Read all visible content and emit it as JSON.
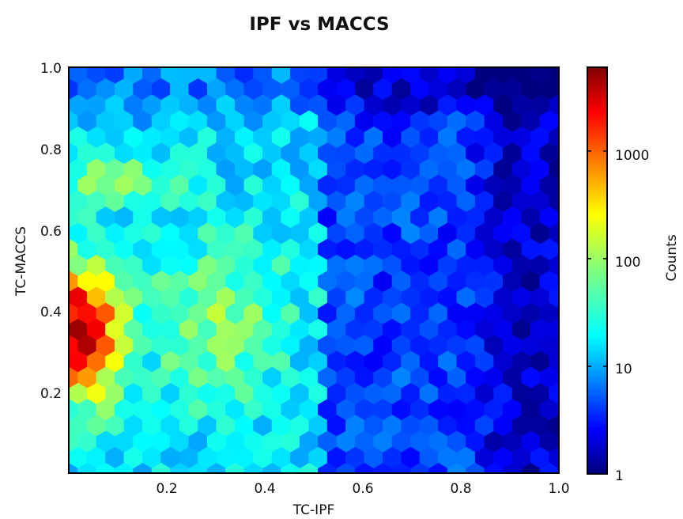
{
  "chart_data": {
    "type": "heatmap",
    "subtype": "hexbin",
    "title": "IPF vs MACCS",
    "xlabel": "TC-IPF",
    "ylabel": "TC-MACCS",
    "xlim": [
      0.0,
      1.0
    ],
    "ylim": [
      0.0,
      1.0
    ],
    "xticks": [
      "0.2",
      "0.4",
      "0.6",
      "0.8",
      "1.0"
    ],
    "yticks": [
      "0.2",
      "0.4",
      "0.6",
      "0.8",
      "1.0"
    ],
    "x_tick_values": [
      0.2,
      0.4,
      0.6,
      0.8,
      1.0
    ],
    "y_tick_values": [
      0.2,
      0.4,
      0.6,
      0.8,
      1.0
    ],
    "grid": false,
    "colormap": "jet",
    "color_scale": "log",
    "colorbar": {
      "label": "Counts",
      "range": [
        1,
        6000
      ],
      "ticks": [
        "1",
        "10",
        "100",
        "1000"
      ],
      "tick_values": [
        1,
        10,
        100,
        1000
      ]
    },
    "density_model": {
      "description": "Approximate hexbin count levels read from the color map",
      "hotspot": {
        "x": 0.02,
        "y": 0.35,
        "peak_count": 5000
      },
      "secondary_lobe": {
        "x": 0.3,
        "y": 0.38,
        "count": 80
      },
      "upper_band": {
        "x": 0.1,
        "y": 0.72,
        "count": 80
      },
      "x_break": {
        "at": 0.52,
        "left_count": 20,
        "right_count": 5
      },
      "high_x_region": {
        "x": 0.9,
        "count": 2
      },
      "top_edge": {
        "y": 0.95,
        "count": 2
      }
    }
  }
}
